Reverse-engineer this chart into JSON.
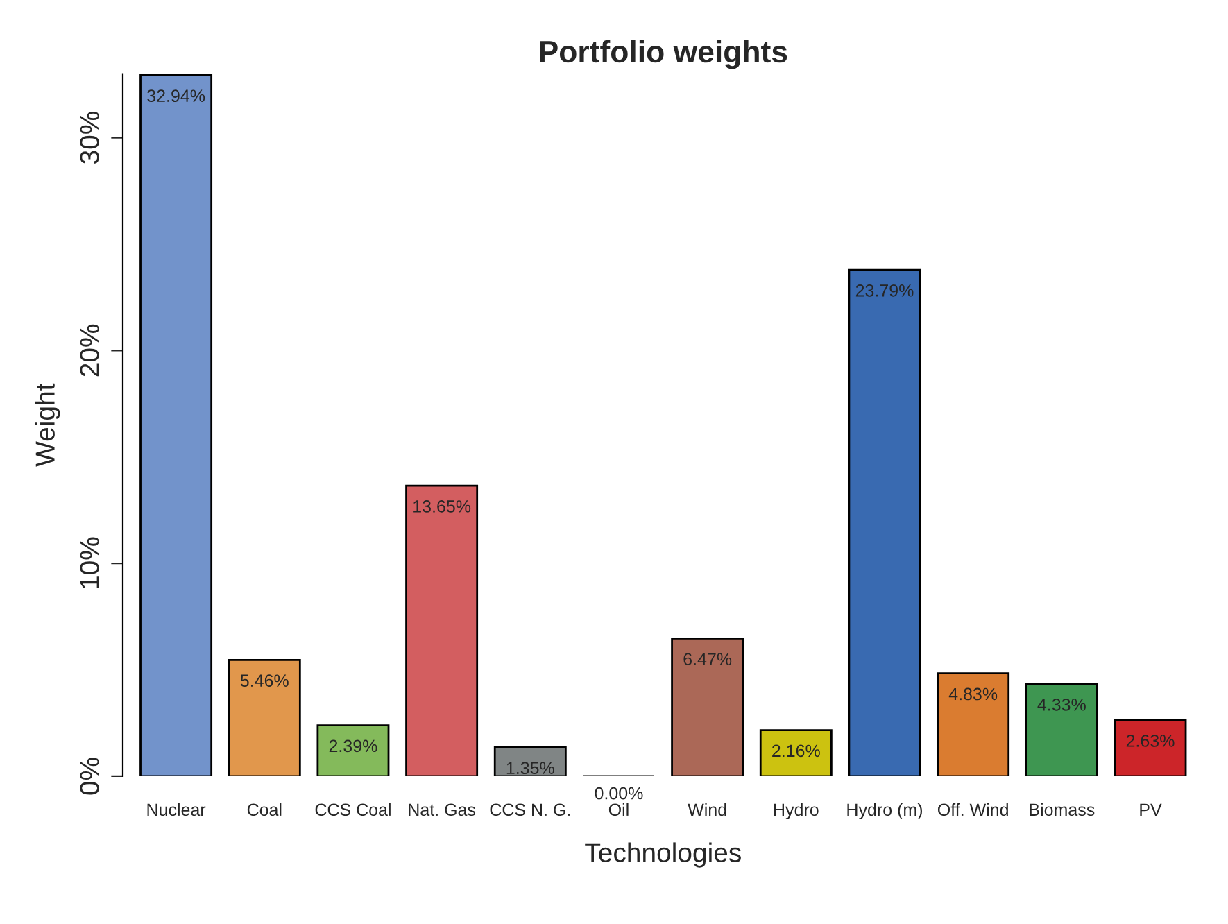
{
  "chart_data": {
    "type": "bar",
    "title": "Portfolio weights",
    "xlabel": "Technologies",
    "ylabel": "Weight",
    "categories": [
      "Nuclear",
      "Coal",
      "CCS Coal",
      "Nat. Gas",
      "CCS N. G.",
      "Oil",
      "Wind",
      "Hydro",
      "Hydro (m)",
      "Off. Wind",
      "Biomass",
      "PV"
    ],
    "values": [
      32.94,
      5.46,
      2.39,
      13.65,
      1.35,
      0.0,
      6.47,
      2.16,
      23.79,
      4.83,
      4.33,
      2.63
    ],
    "value_labels": [
      "32.94%",
      "5.46%",
      "2.39%",
      "13.65%",
      "1.35%",
      "0.00%",
      "6.47%",
      "2.16%",
      "23.79%",
      "4.83%",
      "4.33%",
      "2.63%"
    ],
    "colors": [
      "#7293cb",
      "#e1974c",
      "#84ba5b",
      "#d35e60",
      "#808585",
      "#000000",
      "#ab6857",
      "#ccc210",
      "#396ab1",
      "#da7c30",
      "#3e9651",
      "#cc2529"
    ],
    "ylim": [
      0,
      33
    ],
    "yticks": [
      {
        "value": 0,
        "label": "0%"
      },
      {
        "value": 10,
        "label": "10%"
      },
      {
        "value": 20,
        "label": "20%"
      },
      {
        "value": 30,
        "label": "30%"
      }
    ],
    "grid": false,
    "legend": false
  }
}
